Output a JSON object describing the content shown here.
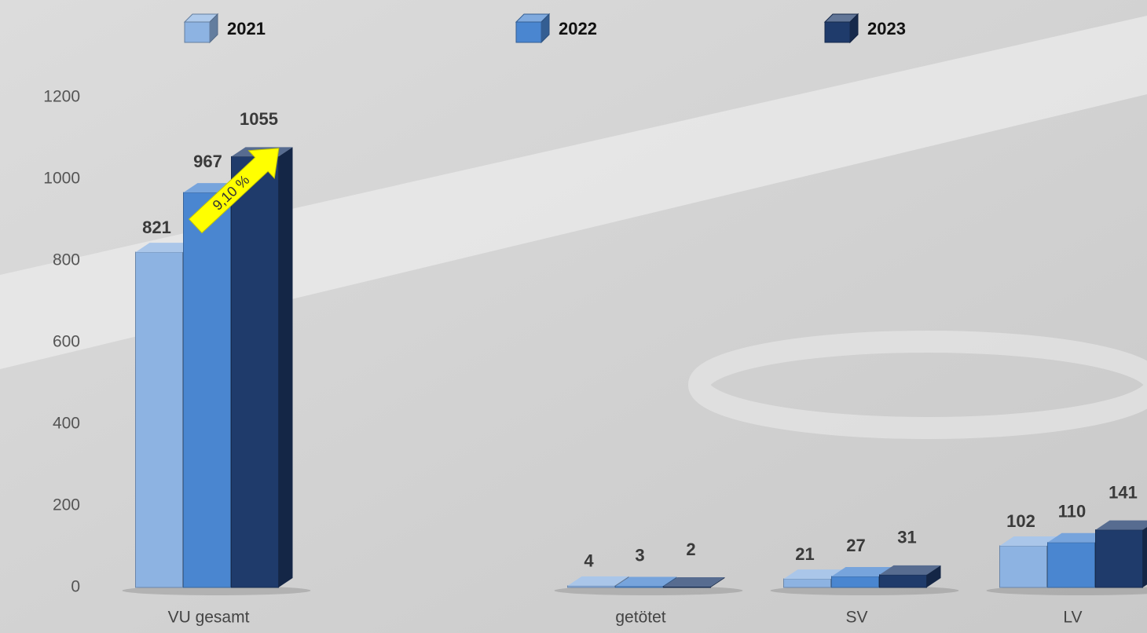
{
  "chart_data": {
    "type": "bar3d",
    "categories": [
      "VU gesamt",
      null,
      "getötet",
      "SV",
      "LV"
    ],
    "series": [
      {
        "name": "2021",
        "color": "#8db3e2",
        "values": [
          821,
          null,
          4,
          21,
          102
        ]
      },
      {
        "name": "2022",
        "color": "#4a86d0",
        "values": [
          967,
          null,
          3,
          27,
          110
        ]
      },
      {
        "name": "2023",
        "color": "#1f3b6b",
        "values": [
          1055,
          null,
          2,
          31,
          141
        ]
      }
    ],
    "ylim": [
      0,
      1200
    ],
    "yticks": [
      0,
      200,
      400,
      600,
      800,
      1000,
      1200
    ],
    "annotation": "9,10 %"
  }
}
